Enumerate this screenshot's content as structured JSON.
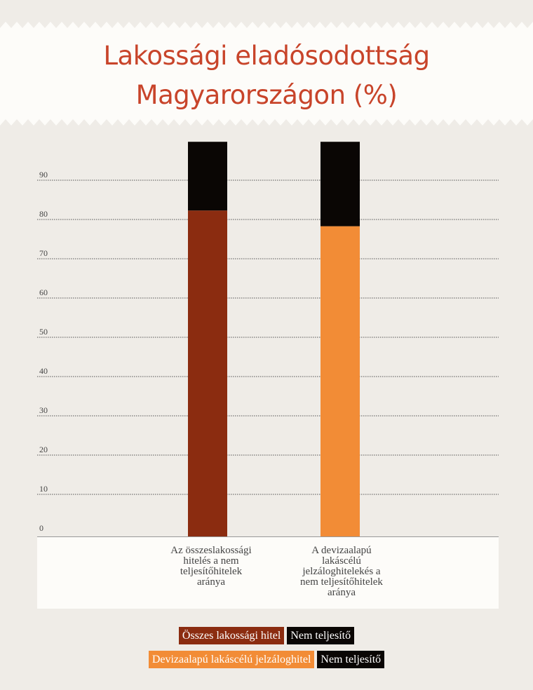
{
  "title": "Lakossági eladósodottság\nMagyarországon (%)",
  "colors": {
    "background": "#efece7",
    "header": "#fdfcf9",
    "title": "#c8442a",
    "total_credit": "#8b2c10",
    "fx_mortgage": "#f28c36",
    "non_performing": "#0a0604"
  },
  "chart_data": {
    "type": "bar",
    "stacked": true,
    "categories": [
      "Az összeslakossági hitelés a nem teljesítőhitelek aránya",
      "A devizaalapú lakáscélú jelzáloghitelekés a nem teljesítőhitelek aránya"
    ],
    "bars": [
      {
        "base_value": 83,
        "base_color": "#8b2c10",
        "top_value": 17.5,
        "top_color": "#0a0604"
      },
      {
        "base_value": 79,
        "base_color": "#f28c36",
        "top_value": 21.5,
        "top_color": "#0a0604"
      }
    ],
    "y_ticks": [
      "0",
      "10",
      "20",
      "30",
      "40",
      "50",
      "60",
      "70",
      "80",
      "90"
    ],
    "ylim": [
      0,
      100
    ],
    "grid": true
  },
  "x_labels": [
    "Az összeslakossági\nhitelés a nem\nteljesítőhitelek\naránya",
    "A devizaalapú\nlakáscélú\njelzáloghitelekés a\nnem teljesítőhitelek\naránya"
  ],
  "legend": {
    "rows": [
      [
        {
          "label": "Összes lakossági hitel",
          "color": "#8b2c10"
        },
        {
          "label": "Nem teljesítő",
          "color": "#0a0604"
        }
      ],
      [
        {
          "label": "Devizaalapú lakáscélú jelzáloghitel",
          "color": "#f28c36"
        },
        {
          "label": "Nem teljesítő",
          "color": "#0a0604"
        }
      ]
    ]
  }
}
